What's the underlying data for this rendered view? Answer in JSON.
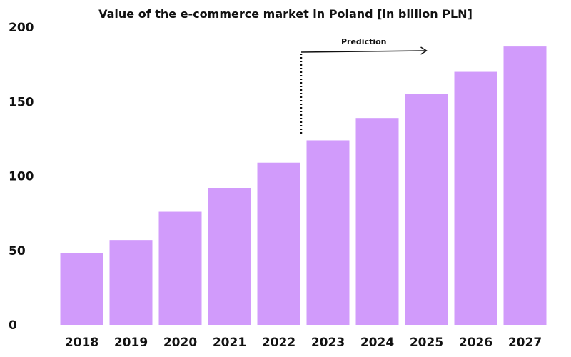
{
  "chart_data": {
    "type": "bar",
    "title": "Value of the e-commerce market in Poland [in billion PLN]",
    "categories": [
      "2018",
      "2019",
      "2020",
      "2021",
      "2022",
      "2023",
      "2024",
      "2025",
      "2026",
      "2027"
    ],
    "values": [
      48,
      57,
      76,
      92,
      109,
      124,
      139,
      155,
      170,
      187
    ],
    "ylim": [
      0,
      200
    ],
    "yticks": [
      0,
      50,
      100,
      150,
      200
    ],
    "xlabel": "",
    "ylabel": "",
    "grid": false,
    "bar_color": "#d19bfb",
    "annotation": {
      "label": "Prediction",
      "from_category": "2023",
      "arrow_to_category": "2025"
    }
  }
}
